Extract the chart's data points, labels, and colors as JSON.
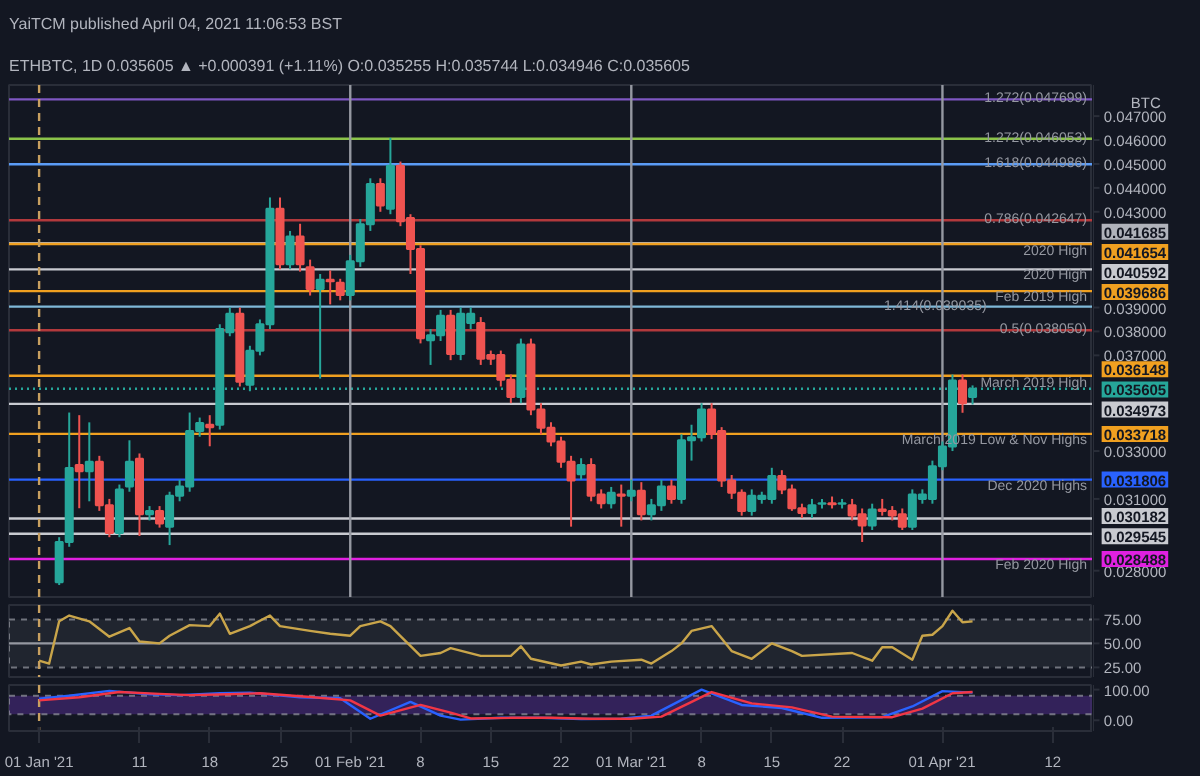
{
  "chart_data": [
    {
      "type": "candlestick",
      "title": "YaiTCM published April 04, 2021 11:06:53 BST",
      "subtitle": "ETHBTC, 1D 0.035605 ▲ +0.000391 (+1.11%) O:0.035255 H:0.035744 L:0.034946 C:0.035605",
      "ylabel": "BTC",
      "x": [
        "2021-01-03",
        "2021-01-04",
        "2021-01-05",
        "2021-01-06",
        "2021-01-07",
        "2021-01-08",
        "2021-01-09",
        "2021-01-10",
        "2021-01-11",
        "2021-01-12",
        "2021-01-13",
        "2021-01-14",
        "2021-01-15",
        "2021-01-16",
        "2021-01-17",
        "2021-01-18",
        "2021-01-19",
        "2021-01-20",
        "2021-01-21",
        "2021-01-22",
        "2021-01-23",
        "2021-01-24",
        "2021-01-25",
        "2021-01-26",
        "2021-01-27",
        "2021-01-28",
        "2021-01-29",
        "2021-01-30",
        "2021-01-31",
        "2021-02-01",
        "2021-02-02",
        "2021-02-03",
        "2021-02-04",
        "2021-02-05",
        "2021-02-06",
        "2021-02-07",
        "2021-02-08",
        "2021-02-09",
        "2021-02-10",
        "2021-02-11",
        "2021-02-12",
        "2021-02-13",
        "2021-02-14",
        "2021-02-15",
        "2021-02-16",
        "2021-02-17",
        "2021-02-18",
        "2021-02-19",
        "2021-02-20",
        "2021-02-21",
        "2021-02-22",
        "2021-02-23",
        "2021-02-24",
        "2021-02-25",
        "2021-02-26",
        "2021-02-27",
        "2021-02-28",
        "2021-03-01",
        "2021-03-02",
        "2021-03-03",
        "2021-03-04",
        "2021-03-05",
        "2021-03-06",
        "2021-03-07",
        "2021-03-08",
        "2021-03-09",
        "2021-03-10",
        "2021-03-11",
        "2021-03-12",
        "2021-03-13",
        "2021-03-14",
        "2021-03-15",
        "2021-03-16",
        "2021-03-17",
        "2021-03-18",
        "2021-03-19",
        "2021-03-20",
        "2021-03-21",
        "2021-03-22",
        "2021-03-23",
        "2021-03-24",
        "2021-03-25",
        "2021-03-26",
        "2021-03-27",
        "2021-03-28",
        "2021-03-29",
        "2021-03-30",
        "2021-03-31",
        "2021-04-01",
        "2021-04-02",
        "2021-04-03",
        "2021-04-04"
      ],
      "ohlc": [
        [
          0.02752,
          0.0294,
          0.0274,
          0.0292
        ],
        [
          0.0292,
          0.03461,
          0.029,
          0.03229
        ],
        [
          0.03242,
          0.0345,
          0.03061,
          0.03216
        ],
        [
          0.03216,
          0.0342,
          0.0309,
          0.03255
        ],
        [
          0.03255,
          0.0328,
          0.0305,
          0.03074
        ],
        [
          0.03074,
          0.031,
          0.0294,
          0.02958
        ],
        [
          0.02958,
          0.0316,
          0.0294,
          0.03139
        ],
        [
          0.03152,
          0.03345,
          0.0313,
          0.03255
        ],
        [
          0.03268,
          0.0329,
          0.02945,
          0.03036
        ],
        [
          0.03036,
          0.0307,
          0.0301,
          0.03049
        ],
        [
          0.03049,
          0.0307,
          0.0298,
          0.02997
        ],
        [
          0.02984,
          0.0313,
          0.02907,
          0.03113
        ],
        [
          0.03113,
          0.0318,
          0.0309,
          0.03152
        ],
        [
          0.03152,
          0.03461,
          0.0313,
          0.03384
        ],
        [
          0.03384,
          0.0344,
          0.0336,
          0.03417
        ],
        [
          0.0341,
          0.0345,
          0.0332,
          0.034
        ],
        [
          0.0341,
          0.0383,
          0.0339,
          0.0381
        ],
        [
          0.03797,
          0.039,
          0.0378,
          0.03874
        ],
        [
          0.03874,
          0.039,
          0.0357,
          0.0359
        ],
        [
          0.03577,
          0.0374,
          0.0355,
          0.03719
        ],
        [
          0.03719,
          0.0385,
          0.037,
          0.0383
        ],
        [
          0.0383,
          0.0436,
          0.0381,
          0.04313
        ],
        [
          0.04313,
          0.0436,
          0.0406,
          0.04081
        ],
        [
          0.04081,
          0.0422,
          0.0406,
          0.04197
        ],
        [
          0.04197,
          0.0425,
          0.0405,
          0.04081
        ],
        [
          0.04068,
          0.041,
          0.0395,
          0.03977
        ],
        [
          0.03977,
          0.0404,
          0.03603,
          0.04016
        ],
        [
          0.04016,
          0.04055,
          0.03913,
          0.0401
        ],
        [
          0.04003,
          0.0402,
          0.0393,
          0.03952
        ],
        [
          0.03952,
          0.0412,
          0.0393,
          0.04093
        ],
        [
          0.04093,
          0.0427,
          0.0407,
          0.04248
        ],
        [
          0.04248,
          0.0444,
          0.0422,
          0.04416
        ],
        [
          0.04416,
          0.0444,
          0.043,
          0.04326
        ],
        [
          0.04313,
          0.04609,
          0.0429,
          0.04493
        ],
        [
          0.04493,
          0.0451,
          0.0424,
          0.04261
        ],
        [
          0.04274,
          0.0429,
          0.0404,
          0.04145
        ],
        [
          0.04145,
          0.0416,
          0.0375,
          0.03771
        ],
        [
          0.03763,
          0.0381,
          0.0366,
          0.03784
        ],
        [
          0.03784,
          0.0389,
          0.0376,
          0.03866
        ],
        [
          0.03866,
          0.0389,
          0.0368,
          0.03706
        ],
        [
          0.03706,
          0.039,
          0.0368,
          0.03874
        ],
        [
          0.03835,
          0.039,
          0.0381,
          0.03874
        ],
        [
          0.03835,
          0.0386,
          0.0366,
          0.03686
        ],
        [
          0.03701,
          0.0372,
          0.0366,
          0.03686
        ],
        [
          0.03701,
          0.0372,
          0.0357,
          0.03598
        ],
        [
          0.03598,
          0.0362,
          0.035,
          0.03526
        ],
        [
          0.03526,
          0.0377,
          0.035,
          0.03745
        ],
        [
          0.03745,
          0.0377,
          0.0345,
          0.03474
        ],
        [
          0.03474,
          0.035,
          0.0337,
          0.03397
        ],
        [
          0.03397,
          0.0342,
          0.0332,
          0.0334
        ],
        [
          0.0334,
          0.0336,
          0.0323,
          0.03255
        ],
        [
          0.03255,
          0.0328,
          0.02984,
          0.03177
        ],
        [
          0.03203,
          0.0327,
          0.0318,
          0.03242
        ],
        [
          0.03242,
          0.0327,
          0.0309,
          0.03113
        ],
        [
          0.03118,
          0.0314,
          0.0306,
          0.03082
        ],
        [
          0.03082,
          0.0315,
          0.0306,
          0.03126
        ],
        [
          0.03118,
          0.0316,
          0.02984,
          0.03113
        ],
        [
          0.03113,
          0.0318,
          0.0309,
          0.03134
        ],
        [
          0.03134,
          0.0317,
          0.0301,
          0.03036
        ],
        [
          0.03036,
          0.031,
          0.0301,
          0.03074
        ],
        [
          0.03074,
          0.0318,
          0.0305,
          0.03152
        ],
        [
          0.03152,
          0.0318,
          0.0308,
          0.031
        ],
        [
          0.031,
          0.0337,
          0.0308,
          0.03345
        ],
        [
          0.03345,
          0.0341,
          0.0326,
          0.03358
        ],
        [
          0.03358,
          0.035,
          0.0334,
          0.03474
        ],
        [
          0.03474,
          0.035,
          0.0335,
          0.03371
        ],
        [
          0.03384,
          0.034,
          0.0315,
          0.03177
        ],
        [
          0.03177,
          0.032,
          0.031,
          0.03126
        ],
        [
          0.03126,
          0.0314,
          0.0303,
          0.03049
        ],
        [
          0.03049,
          0.0314,
          0.0303,
          0.03113
        ],
        [
          0.031,
          0.0313,
          0.0308,
          0.03113
        ],
        [
          0.031,
          0.0323,
          0.0308,
          0.03196
        ],
        [
          0.03196,
          0.0322,
          0.0312,
          0.03139
        ],
        [
          0.03139,
          0.0316,
          0.0305,
          0.03061
        ],
        [
          0.03061,
          0.0308,
          0.0302,
          0.03041
        ],
        [
          0.03041,
          0.031,
          0.0302,
          0.03074
        ],
        [
          0.0308,
          0.031,
          0.0306,
          0.03082
        ],
        [
          0.03082,
          0.0311,
          0.0306,
          0.03078
        ],
        [
          0.0308,
          0.031,
          0.0306,
          0.03082
        ],
        [
          0.03074,
          0.031,
          0.0301,
          0.03031
        ],
        [
          0.03036,
          0.0306,
          0.0292,
          0.02989
        ],
        [
          0.02989,
          0.0308,
          0.0297,
          0.03056
        ],
        [
          0.03056,
          0.031,
          0.0303,
          0.03049
        ],
        [
          0.03049,
          0.0307,
          0.0301,
          0.03031
        ],
        [
          0.03036,
          0.0306,
          0.0297,
          0.02984
        ],
        [
          0.02984,
          0.0314,
          0.0297,
          0.03118
        ],
        [
          0.031,
          0.0314,
          0.0308,
          0.03118
        ],
        [
          0.031,
          0.0326,
          0.0308,
          0.03237
        ],
        [
          0.03237,
          0.0334,
          0.0322,
          0.03319
        ],
        [
          0.03319,
          0.0362,
          0.033,
          0.03595
        ],
        [
          0.03595,
          0.0362,
          0.0346,
          0.035
        ],
        [
          0.035255,
          0.035744,
          0.034946,
          0.035605
        ]
      ],
      "colors": [
        "#26a69a",
        "#26a69a",
        "#ef5350",
        "#26a69a",
        "#ef5350",
        "#ef5350",
        "#26a69a",
        "#26a69a",
        "#ef5350",
        "#26a69a",
        "#ef5350",
        "#26a69a",
        "#26a69a",
        "#26a69a",
        "#26a69a",
        "#ef5350",
        "#26a69a",
        "#26a69a",
        "#ef5350",
        "#26a69a",
        "#26a69a",
        "#26a69a",
        "#ef5350",
        "#26a69a",
        "#ef5350",
        "#ef5350",
        "#26a69a",
        "#ef5350",
        "#ef5350",
        "#26a69a",
        "#26a69a",
        "#26a69a",
        "#ef5350",
        "#26a69a",
        "#ef5350",
        "#ef5350",
        "#ef5350",
        "#26a69a",
        "#26a69a",
        "#ef5350",
        "#26a69a",
        "#26a69a",
        "#ef5350",
        "#ef5350",
        "#ef5350",
        "#ef5350",
        "#26a69a",
        "#ef5350",
        "#ef5350",
        "#ef5350",
        "#ef5350",
        "#ef5350",
        "#26a69a",
        "#ef5350",
        "#ef5350",
        "#26a69a",
        "#ef5350",
        "#26a69a",
        "#ef5350",
        "#26a69a",
        "#26a69a",
        "#ef5350",
        "#26a69a",
        "#26a69a",
        "#26a69a",
        "#ef5350",
        "#ef5350",
        "#ef5350",
        "#ef5350",
        "#26a69a",
        "#26a69a",
        "#26a69a",
        "#ef5350",
        "#ef5350",
        "#ef5350",
        "#26a69a",
        "#26a69a",
        "#ef5350",
        "#26a69a",
        "#ef5350",
        "#ef5350",
        "#26a69a",
        "#ef5350",
        "#ef5350",
        "#ef5350",
        "#26a69a",
        "#26a69a",
        "#26a69a",
        "#26a69a",
        "#26a69a",
        "#ef5350",
        "#26a69a"
      ],
      "xlim": [
        "2020-12-29",
        "2021-04-16"
      ],
      "ylim": [
        0.0269,
        0.0483
      ],
      "yticks": [
        {
          "value": 0.028,
          "label": "0.028000"
        },
        {
          "value": 0.031,
          "label": "0.031000"
        },
        {
          "value": 0.033,
          "label": "0.033000"
        },
        {
          "value": 0.037,
          "label": "0.037000"
        },
        {
          "value": 0.038,
          "label": "0.038000"
        },
        {
          "value": 0.039,
          "label": "0.039000"
        },
        {
          "value": 0.043,
          "label": "0.043000"
        },
        {
          "value": 0.044,
          "label": "0.044000"
        },
        {
          "value": 0.045,
          "label": "0.045000"
        },
        {
          "value": 0.046,
          "label": "0.046000"
        },
        {
          "value": 0.047,
          "label": "0.047000"
        }
      ],
      "tick_labels": "y",
      "grid": false,
      "ref_lines": [
        {
          "axis": "y",
          "value": 0.047699,
          "label": null,
          "color": "#7e57c2"
        },
        {
          "axis": "y",
          "value": 0.046053,
          "label": null,
          "color": "#8bc34a"
        },
        {
          "axis": "y",
          "value": 0.044986,
          "label": null,
          "color": "#5b9cf6"
        },
        {
          "axis": "y",
          "value": 0.042647,
          "label": null,
          "color": "#b2393c"
        },
        {
          "axis": "y",
          "value": 0.041685,
          "label": "0.041685",
          "color": "#b0b3bb"
        },
        {
          "axis": "y",
          "value": 0.041654,
          "label": "0.041654",
          "color": "#f0a020"
        },
        {
          "axis": "y",
          "value": 0.040592,
          "label": "0.040592",
          "color": "#c8cad0"
        },
        {
          "axis": "y",
          "value": 0.039686,
          "label": "0.039686",
          "color": "#f0a020"
        },
        {
          "axis": "y",
          "value": 0.039035,
          "label": null,
          "color": "#7fb8d8"
        },
        {
          "axis": "y",
          "value": 0.03805,
          "label": null,
          "color": "#b2393c"
        },
        {
          "axis": "y",
          "value": 0.036148,
          "label": "0.036148",
          "color": "#f0a020"
        },
        {
          "axis": "y",
          "value": 0.035605,
          "label": "0.035605",
          "color": "#26a69a",
          "line_style": "dotted"
        },
        {
          "axis": "y",
          "value": 0.034973,
          "label": "0.034973",
          "color": "#c8cad0"
        },
        {
          "axis": "y",
          "value": 0.033718,
          "label": "0.033718",
          "color": "#f0a020"
        },
        {
          "axis": "y",
          "value": 0.031806,
          "label": "0.031806",
          "color": "#2962ff"
        },
        {
          "axis": "y",
          "value": 0.030182,
          "label": "0.030182",
          "color": "#c8cad0"
        },
        {
          "axis": "y",
          "value": 0.029545,
          "label": "0.029545",
          "color": "#c8cad0"
        },
        {
          "axis": "y",
          "value": 0.028488,
          "label": "0.028488",
          "color": "#e020e0"
        },
        {
          "axis": "x",
          "value": "2021-01-01",
          "label": null,
          "color": "#c8a060",
          "line_style": "dashed"
        },
        {
          "axis": "x",
          "value": "2021-02-01",
          "label": null,
          "color": "#9598a1"
        },
        {
          "axis": "x",
          "value": "2021-03-01",
          "label": null,
          "color": "#9598a1"
        },
        {
          "axis": "x",
          "value": "2021-04-01",
          "label": null,
          "color": "#9598a1"
        }
      ],
      "annotations": [
        {
          "text": "1.272(0.047699)",
          "x": "2021-04-16",
          "y": 0.047699
        },
        {
          "text": "1.272(0.046053)",
          "x": "2021-04-16",
          "y": 0.046053
        },
        {
          "text": "1.618(0.044986)",
          "x": "2021-04-16",
          "y": 0.044986
        },
        {
          "text": "0.786(0.042647)",
          "x": "2021-04-16",
          "y": 0.042647
        },
        {
          "text": "2020 High",
          "x": "2021-04-16",
          "y": 0.0413
        },
        {
          "text": "2020 High",
          "x": "2021-04-16",
          "y": 0.0403
        },
        {
          "text": "Feb 2019 High",
          "x": "2021-04-16",
          "y": 0.0394
        },
        {
          "text": "1.414(0.039035)",
          "x": "2021-04-06",
          "y": 0.039035
        },
        {
          "text": "0.5(0.038050)",
          "x": "2021-04-16",
          "y": 0.03805
        },
        {
          "text": "March 2019 High",
          "x": "2021-04-16",
          "y": 0.0358
        },
        {
          "text": "March 2019 Low & Nov Highs",
          "x": "2021-04-16",
          "y": 0.0334
        },
        {
          "text": "Dec 2020 Highs",
          "x": "2021-04-16",
          "y": 0.0315
        },
        {
          "text": "Feb 2020 High",
          "x": "2021-04-16",
          "y": 0.0282
        }
      ]
    },
    {
      "type": "line",
      "xlim": [
        "2020-12-29",
        "2021-04-16"
      ],
      "ylim": [
        15,
        90
      ],
      "tick_labels": "y",
      "grid": false,
      "yticks": [
        {
          "value": 25,
          "label": "25.00"
        },
        {
          "value": 50,
          "label": "50.00"
        },
        {
          "value": 75,
          "label": "75.00"
        }
      ],
      "bands": [
        {
          "axis": "y",
          "from": 25,
          "to": 75,
          "color": "#2a2e39"
        }
      ],
      "ref_lines": [
        {
          "axis": "y",
          "value": 50,
          "color": "#9598a1"
        },
        {
          "axis": "x",
          "value": "2021-01-01",
          "color": "#c8a060",
          "line_style": "dashed"
        }
      ],
      "series": [
        {
          "color": "#c9a54a",
          "x": [
            "2021-01-01",
            "2021-01-02",
            "2021-01-03",
            "2021-01-04",
            "2021-01-06",
            "2021-01-08",
            "2021-01-10",
            "2021-01-11",
            "2021-01-13",
            "2021-01-14",
            "2021-01-16",
            "2021-01-18",
            "2021-01-19",
            "2021-01-20",
            "2021-01-22",
            "2021-01-24",
            "2021-01-25",
            "2021-01-28",
            "2021-01-30",
            "2021-02-01",
            "2021-02-02",
            "2021-02-04",
            "2021-02-05",
            "2021-02-08",
            "2021-02-10",
            "2021-02-11",
            "2021-02-14",
            "2021-02-17",
            "2021-02-18",
            "2021-02-19",
            "2021-02-22",
            "2021-02-24",
            "2021-02-25",
            "2021-02-27",
            "2021-03-02",
            "2021-03-03",
            "2021-03-05",
            "2021-03-06",
            "2021-03-07",
            "2021-03-09",
            "2021-03-10",
            "2021-03-11",
            "2021-03-13",
            "2021-03-14",
            "2021-03-15",
            "2021-03-17",
            "2021-03-18",
            "2021-03-23",
            "2021-03-25",
            "2021-03-26",
            "2021-03-27",
            "2021-03-29",
            "2021-03-30",
            "2021-03-31",
            "2021-04-01",
            "2021-04-02",
            "2021-04-03",
            "2021-04-04"
          ],
          "values": [
            32,
            29,
            73,
            79,
            73,
            57,
            66,
            52,
            50,
            58,
            69,
            68,
            81,
            60,
            68,
            79,
            68,
            63,
            60,
            58,
            68,
            73,
            68,
            37,
            40,
            45,
            37,
            37,
            47,
            34,
            27,
            31,
            28,
            31,
            33,
            29,
            42,
            50,
            63,
            68,
            55,
            42,
            34,
            42,
            50,
            42,
            37,
            40,
            32,
            46,
            46,
            33,
            58,
            59,
            68,
            84,
            72,
            73
          ]
        }
      ]
    },
    {
      "type": "line",
      "xlim": [
        "2020-12-29",
        "2021-04-16"
      ],
      "ylim": [
        -35,
        115
      ],
      "grid": false,
      "yticks": [
        {
          "value": 0,
          "label": "0.00"
        },
        {
          "value": 100,
          "label": "100.00"
        }
      ],
      "xticks": [
        {
          "value": "2021-01-01",
          "label": "01 Jan '21"
        },
        {
          "value": "2021-01-11",
          "label": "11"
        },
        {
          "value": "2021-01-18",
          "label": "18"
        },
        {
          "value": "2021-01-25",
          "label": "25"
        },
        {
          "value": "2021-02-01",
          "label": "01 Feb '21"
        },
        {
          "value": "2021-02-08",
          "label": "8"
        },
        {
          "value": "2021-02-15",
          "label": "15"
        },
        {
          "value": "2021-02-22",
          "label": "22"
        },
        {
          "value": "2021-03-01",
          "label": "01 Mar '21"
        },
        {
          "value": "2021-03-08",
          "label": "8"
        },
        {
          "value": "2021-03-15",
          "label": "15"
        },
        {
          "value": "2021-03-22",
          "label": "22"
        },
        {
          "value": "2021-04-01",
          "label": "01 Apr '21"
        },
        {
          "value": "2021-04-12",
          "label": "12"
        }
      ],
      "bands": [
        {
          "axis": "y",
          "from": 20,
          "to": 80,
          "color": "#4a2a80"
        }
      ],
      "ref_lines": [
        {
          "axis": "x",
          "value": "2021-01-01",
          "color": "#c8a060",
          "line_style": "dashed"
        }
      ],
      "series": [
        {
          "color": "#2962ff",
          "x": [
            "2021-01-01",
            "2021-01-04",
            "2021-01-08",
            "2021-01-12",
            "2021-01-15",
            "2021-01-19",
            "2021-01-22",
            "2021-01-27",
            "2021-01-31",
            "2021-02-03",
            "2021-02-07",
            "2021-02-10",
            "2021-02-12",
            "2021-02-16",
            "2021-02-20",
            "2021-02-24",
            "2021-02-28",
            "2021-03-03",
            "2021-03-08",
            "2021-03-12",
            "2021-03-16",
            "2021-03-20",
            "2021-03-26",
            "2021-03-29",
            "2021-04-01",
            "2021-04-04"
          ],
          "values": [
            70,
            80,
            96,
            85,
            82,
            88,
            90,
            75,
            72,
            5,
            60,
            15,
            2,
            8,
            8,
            4,
            5,
            15,
            100,
            50,
            40,
            8,
            10,
            45,
            95,
            90
          ]
        },
        {
          "color": "#f23645",
          "x": [
            "2021-01-01",
            "2021-01-05",
            "2021-01-09",
            "2021-01-13",
            "2021-01-16",
            "2021-01-20",
            "2021-01-23",
            "2021-01-28",
            "2021-02-01",
            "2021-02-04",
            "2021-02-08",
            "2021-02-11",
            "2021-02-13",
            "2021-02-17",
            "2021-02-21",
            "2021-02-25",
            "2021-03-01",
            "2021-03-04",
            "2021-03-09",
            "2021-03-13",
            "2021-03-17",
            "2021-03-21",
            "2021-03-27",
            "2021-03-30",
            "2021-04-02",
            "2021-04-04"
          ],
          "values": [
            65,
            75,
            92,
            86,
            82,
            85,
            88,
            76,
            65,
            15,
            50,
            25,
            6,
            8,
            8,
            5,
            5,
            12,
            92,
            55,
            42,
            12,
            10,
            38,
            88,
            92
          ]
        }
      ]
    }
  ]
}
